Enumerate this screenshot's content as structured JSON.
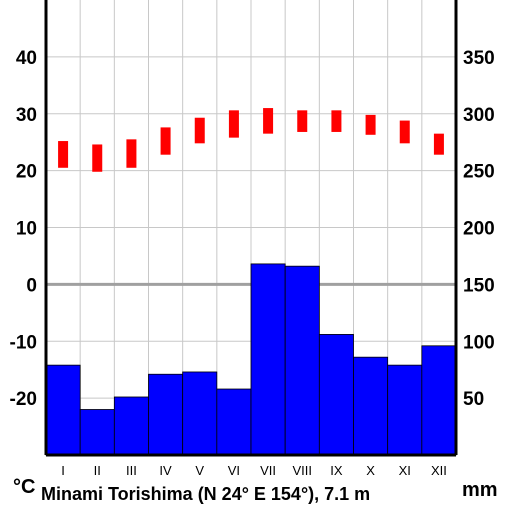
{
  "chart_data": {
    "type": "bar",
    "caption": "Minami Torishima (N 24° E 154°), 7.1 m",
    "left_unit": "°C",
    "right_unit": "mm",
    "months": [
      "I",
      "II",
      "III",
      "IV",
      "V",
      "VI",
      "VII",
      "VIII",
      "IX",
      "X",
      "XI",
      "XII"
    ],
    "left_ticks": [
      "40",
      "30",
      "20",
      "10",
      "0",
      "-10",
      "-20"
    ],
    "right_ticks": [
      "350",
      "300",
      "250",
      "200",
      "150",
      "100",
      "50"
    ],
    "temp_ylim": [
      -30,
      50
    ],
    "precip_ylim": [
      0,
      400
    ],
    "zero_line": true,
    "grid": true,
    "series": [
      {
        "name": "",
        "kind": "precipitation_bars",
        "color": "#0000ff",
        "values": [
          79,
          40,
          51,
          71,
          73,
          58,
          168,
          166,
          106,
          86,
          79,
          96
        ]
      },
      {
        "name": "",
        "kind": "temperature_range",
        "color": "#ff0000",
        "low": [
          20.5,
          19.8,
          20.5,
          22.8,
          24.8,
          25.8,
          26.5,
          26.8,
          26.8,
          26.3,
          24.8,
          22.8
        ],
        "high": [
          25.2,
          24.6,
          25.5,
          27.6,
          29.3,
          30.6,
          31.0,
          30.6,
          30.6,
          29.8,
          28.8,
          26.5
        ]
      }
    ]
  }
}
